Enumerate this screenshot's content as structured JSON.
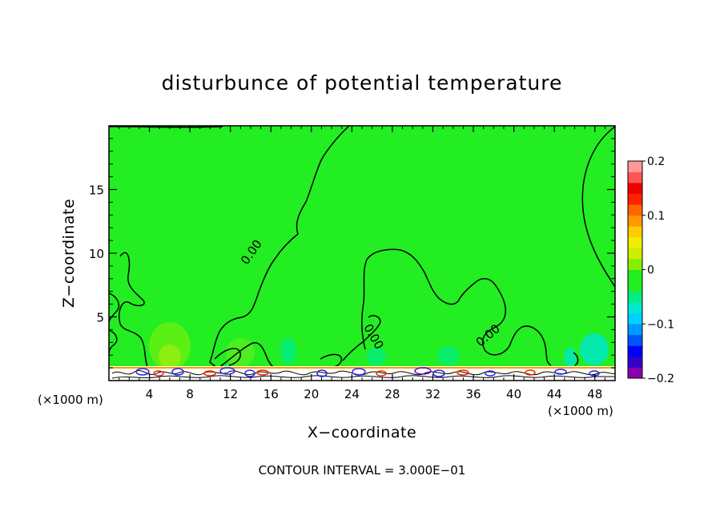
{
  "chart_data": {
    "type": "heatmap",
    "title": "disturbunce of potential temperature",
    "xlabel": "X−coordinate",
    "ylabel": "Z−coordinate",
    "x_unit": "(×1000 m)",
    "y_unit": "(×1000 m)",
    "xlim": [
      0,
      50
    ],
    "ylim": [
      0,
      20
    ],
    "x_ticks": [
      4,
      8,
      12,
      16,
      20,
      24,
      28,
      32,
      36,
      40,
      44,
      48
    ],
    "y_ticks": [
      5,
      10,
      15
    ],
    "colorbar": {
      "min": -0.2,
      "max": 0.2,
      "ticks": [
        0.2,
        0.1,
        0,
        -0.1,
        -0.2
      ],
      "tick_labels": [
        "0.2",
        "0.1",
        "0",
        "−0.1",
        "−0.2"
      ],
      "colors": [
        "#8b00b0",
        "#3300cc",
        "#0000ff",
        "#0055ff",
        "#0099ff",
        "#00d0ff",
        "#00e8d0",
        "#00ee80",
        "#22ee22",
        "#22ee22",
        "#88ee00",
        "#ccee00",
        "#eeee00",
        "#ffcc00",
        "#ff9900",
        "#ff6600",
        "#ff2200",
        "#ee0000",
        "#ff5555",
        "#ff9999"
      ]
    },
    "contour_labels": [
      {
        "text": "0.00",
        "x": 14.4,
        "y": 9.9
      },
      {
        "text": "0.00",
        "x": 25.8,
        "y": 3.3
      },
      {
        "text": "0.00",
        "x": 37.7,
        "y": 3.3
      }
    ],
    "contour_interval_text": "CONTOUR INTERVAL = 3.000E−01"
  }
}
